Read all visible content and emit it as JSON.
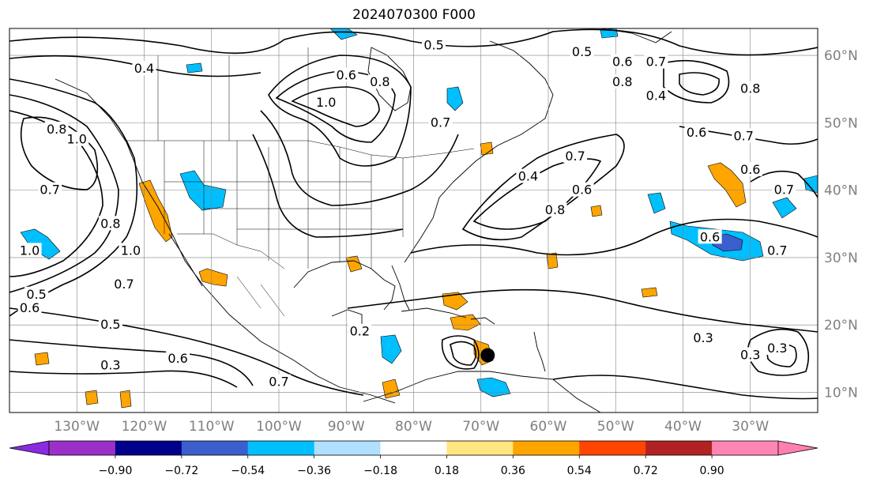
{
  "title": "2024070300 F000",
  "map": {
    "projection": "PlateCarree",
    "lon_range": [
      -140,
      -20
    ],
    "lat_range": [
      7,
      64
    ],
    "lon_ticks": [
      {
        "lon": -130,
        "label": "130°W"
      },
      {
        "lon": -120,
        "label": "120°W"
      },
      {
        "lon": -110,
        "label": "110°W"
      },
      {
        "lon": -100,
        "label": "100°W"
      },
      {
        "lon": -90,
        "label": "90°W"
      },
      {
        "lon": -80,
        "label": "80°W"
      },
      {
        "lon": -70,
        "label": "70°W"
      },
      {
        "lon": -60,
        "label": "60°W"
      },
      {
        "lon": -50,
        "label": "50°W"
      },
      {
        "lon": -40,
        "label": "40°W"
      },
      {
        "lon": -30,
        "label": "30°W"
      }
    ],
    "lat_ticks": [
      {
        "lat": 60,
        "label": "60°N"
      },
      {
        "lat": 50,
        "label": "50°N"
      },
      {
        "lat": 40,
        "label": "40°N"
      },
      {
        "lat": 30,
        "label": "30°N"
      },
      {
        "lat": 20,
        "label": "20°N"
      },
      {
        "lat": 10,
        "label": "10°N"
      }
    ],
    "gridlines": true,
    "storm_marker": {
      "lon": -69,
      "lat": 15.5
    }
  },
  "contour_labels": [
    {
      "lon": -120,
      "lat": 58,
      "text": "0.4"
    },
    {
      "lon": -133,
      "lat": 49,
      "text": "0.8"
    },
    {
      "lon": -130,
      "lat": 47.5,
      "text": "1.0"
    },
    {
      "lon": -134,
      "lat": 40,
      "text": "0.7"
    },
    {
      "lon": -125,
      "lat": 35,
      "text": "0.8"
    },
    {
      "lon": -122,
      "lat": 31,
      "text": "1.0"
    },
    {
      "lon": -137,
      "lat": 31,
      "text": "1.0"
    },
    {
      "lon": -123,
      "lat": 26,
      "text": "0.7"
    },
    {
      "lon": -137,
      "lat": 22.5,
      "text": "0.6"
    },
    {
      "lon": -136,
      "lat": 24.5,
      "text": "0.5"
    },
    {
      "lon": -125,
      "lat": 20,
      "text": "0.5"
    },
    {
      "lon": -125,
      "lat": 14,
      "text": "0.3"
    },
    {
      "lon": -115,
      "lat": 15,
      "text": "0.6"
    },
    {
      "lon": -100,
      "lat": 11.5,
      "text": "0.7"
    },
    {
      "lon": -90,
      "lat": 57,
      "text": "0.6"
    },
    {
      "lon": -85,
      "lat": 56,
      "text": "0.8"
    },
    {
      "lon": -93,
      "lat": 53,
      "text": "1.0"
    },
    {
      "lon": -77,
      "lat": 61.5,
      "text": "0.5"
    },
    {
      "lon": -55,
      "lat": 60.5,
      "text": "0.5"
    },
    {
      "lon": -49,
      "lat": 59,
      "text": "0.6"
    },
    {
      "lon": -44,
      "lat": 59,
      "text": "0.7"
    },
    {
      "lon": -49,
      "lat": 56,
      "text": "0.8"
    },
    {
      "lon": -44,
      "lat": 54,
      "text": "0.4"
    },
    {
      "lon": -30,
      "lat": 55,
      "text": "0.8"
    },
    {
      "lon": -38,
      "lat": 48.5,
      "text": "0.6"
    },
    {
      "lon": -31,
      "lat": 48,
      "text": "0.7"
    },
    {
      "lon": -30,
      "lat": 43,
      "text": "0.6"
    },
    {
      "lon": -25,
      "lat": 40,
      "text": "0.7"
    },
    {
      "lon": -36,
      "lat": 33,
      "text": "0.6"
    },
    {
      "lon": -26,
      "lat": 31,
      "text": "0.7"
    },
    {
      "lon": -63,
      "lat": 42,
      "text": "0.4"
    },
    {
      "lon": -56,
      "lat": 45,
      "text": "0.7"
    },
    {
      "lon": -59,
      "lat": 37,
      "text": "0.8"
    },
    {
      "lon": -55,
      "lat": 40,
      "text": "0.6"
    },
    {
      "lon": -76,
      "lat": 50,
      "text": "0.7"
    },
    {
      "lon": -88,
      "lat": 19,
      "text": "0.2"
    },
    {
      "lon": -37,
      "lat": 18,
      "text": "0.3"
    },
    {
      "lon": -30,
      "lat": 15.5,
      "text": "0.3"
    },
    {
      "lon": -26,
      "lat": 16.5,
      "text": "0.3"
    }
  ],
  "colorbar": {
    "colors": [
      "#9b30c8",
      "#00008b",
      "#3a5fcd",
      "#00bfff",
      "#b0e0ff",
      "#ffffff",
      "#ffe680",
      "#ffa500",
      "#ff4500",
      "#b22222",
      "#ff86b4"
    ],
    "under_color": "#8a2be2",
    "over_color": "#ff80b0",
    "tick_labels": [
      "−0.90",
      "−0.72",
      "−0.54",
      "−0.36",
      "−0.18",
      "0.18",
      "0.36",
      "0.54",
      "0.72",
      "0.90"
    ]
  }
}
